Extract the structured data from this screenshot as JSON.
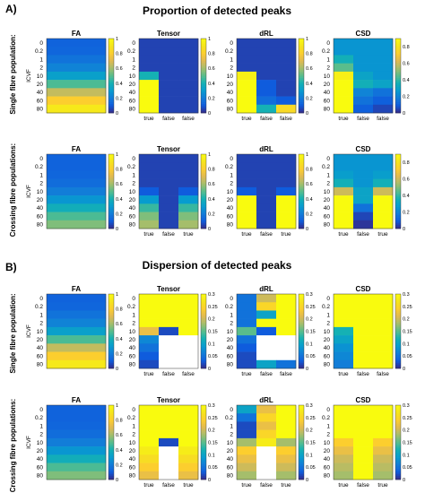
{
  "sections": [
    {
      "letter": "A)",
      "title": "Proportion of detected peaks"
    },
    {
      "letter": "B)",
      "title": "Dispersion of detected peaks"
    }
  ],
  "row_labels": [
    "Single fibre population:",
    "Crossing fibre populations:",
    "Single fibre population:",
    "Crossing fibre populations:"
  ],
  "y_axis_label": "ICVF",
  "y_ticks": [
    "0",
    "0.2",
    "1",
    "2",
    "10",
    "20",
    "40",
    "60",
    "80"
  ],
  "panel_titles": [
    "FA",
    "Tensor",
    "dRL",
    "CSD"
  ],
  "colors": {
    "palette": "parula",
    "nan": "#ffffff"
  },
  "chart_data": [
    {
      "type": "heatmap",
      "section": "A",
      "row": "single",
      "title": "FA",
      "y": [
        "0",
        "0.2",
        "1",
        "2",
        "10",
        "20",
        "40",
        "60",
        "80"
      ],
      "x_labels": [],
      "clim": [
        0,
        1
      ],
      "cbar_ticks": [
        "1",
        "0.8",
        "0.6",
        "0.4",
        "0.2",
        "0"
      ],
      "values": [
        [
          0.12
        ],
        [
          0.13
        ],
        [
          0.17
        ],
        [
          0.22
        ],
        [
          0.32
        ],
        [
          0.48
        ],
        [
          0.65
        ],
        [
          0.8
        ],
        [
          0.92
        ]
      ]
    },
    {
      "type": "heatmap",
      "section": "A",
      "row": "single",
      "title": "Tensor",
      "y": [
        "0",
        "0.2",
        "1",
        "2",
        "10",
        "20",
        "40",
        "60",
        "80"
      ],
      "x_labels": [
        "true",
        "false",
        "false"
      ],
      "clim": [
        0,
        1
      ],
      "cbar_ticks": [
        "1",
        "0.8",
        "0.6",
        "0.4",
        "0.2",
        "0"
      ],
      "values": [
        [
          0.05,
          0.05,
          0.05
        ],
        [
          0.05,
          0.05,
          0.05
        ],
        [
          0.05,
          0.05,
          0.05
        ],
        [
          0.05,
          0.05,
          0.05
        ],
        [
          0.4,
          0.05,
          0.05
        ],
        [
          1,
          0.05,
          0.05
        ],
        [
          1,
          0.05,
          0.05
        ],
        [
          1,
          0.05,
          0.05
        ],
        [
          1,
          0.05,
          0.05
        ]
      ]
    },
    {
      "type": "heatmap",
      "section": "A",
      "row": "single",
      "title": "dRL",
      "y": [
        "0",
        "0.2",
        "1",
        "2",
        "10",
        "20",
        "40",
        "60",
        "80"
      ],
      "x_labels": [
        "true",
        "false",
        "false"
      ],
      "clim": [
        0,
        1
      ],
      "cbar_ticks": [
        "1",
        "0.8",
        "0.6",
        "0.4",
        "0.2",
        "0"
      ],
      "values": [
        [
          0.05,
          0.05,
          0.05
        ],
        [
          0.05,
          0.05,
          0.05
        ],
        [
          0.05,
          0.05,
          0.05
        ],
        [
          0.05,
          0.05,
          0.05
        ],
        [
          0.95,
          0.05,
          0.05
        ],
        [
          1,
          0.1,
          0.05
        ],
        [
          1,
          0.1,
          0.05
        ],
        [
          1,
          0.15,
          0.1
        ],
        [
          1,
          0.4,
          0.85
        ]
      ]
    },
    {
      "type": "heatmap",
      "section": "A",
      "row": "single",
      "title": "CSD",
      "y": [
        "0",
        "0.2",
        "1",
        "2",
        "10",
        "20",
        "40",
        "60",
        "80"
      ],
      "x_labels": [
        "true",
        "false",
        "false"
      ],
      "clim": [
        0,
        0.9
      ],
      "cbar_ticks": [
        "0.8",
        "0.6",
        "0.4",
        "0.2",
        "0"
      ],
      "values": [
        [
          0.25,
          0.25,
          0.25
        ],
        [
          0.25,
          0.25,
          0.25
        ],
        [
          0.35,
          0.25,
          0.25
        ],
        [
          0.45,
          0.25,
          0.25
        ],
        [
          0.85,
          0.3,
          0.25
        ],
        [
          0.9,
          0.35,
          0.3
        ],
        [
          0.9,
          0.2,
          0.15
        ],
        [
          0.9,
          0.15,
          0.1
        ],
        [
          0.9,
          0.1,
          0.05
        ]
      ]
    },
    {
      "type": "heatmap",
      "section": "A",
      "row": "crossing",
      "title": "FA",
      "y": [
        "0",
        "0.2",
        "1",
        "2",
        "10",
        "20",
        "40",
        "60",
        "80"
      ],
      "x_labels": [],
      "clim": [
        0,
        1
      ],
      "cbar_ticks": [
        "1",
        "0.8",
        "0.6",
        "0.4",
        "0.2",
        "0"
      ],
      "values": [
        [
          0.12
        ],
        [
          0.12
        ],
        [
          0.13
        ],
        [
          0.15
        ],
        [
          0.2
        ],
        [
          0.28
        ],
        [
          0.38
        ],
        [
          0.48
        ],
        [
          0.55
        ]
      ]
    },
    {
      "type": "heatmap",
      "section": "A",
      "row": "crossing",
      "title": "Tensor",
      "y": [
        "0",
        "0.2",
        "1",
        "2",
        "10",
        "20",
        "40",
        "60",
        "80"
      ],
      "x_labels": [
        "true",
        "false",
        "true"
      ],
      "clim": [
        0,
        1
      ],
      "cbar_ticks": [
        "1",
        "0.8",
        "0.6",
        "0.4",
        "0.2",
        "0"
      ],
      "values": [
        [
          0.05,
          0.05,
          0.05
        ],
        [
          0.05,
          0.05,
          0.05
        ],
        [
          0.05,
          0.05,
          0.05
        ],
        [
          0.05,
          0.05,
          0.05
        ],
        [
          0.1,
          0.05,
          0.1
        ],
        [
          0.3,
          0.05,
          0.3
        ],
        [
          0.45,
          0.05,
          0.45
        ],
        [
          0.55,
          0.05,
          0.55
        ],
        [
          0.6,
          0.05,
          0.6
        ]
      ]
    },
    {
      "type": "heatmap",
      "section": "A",
      "row": "crossing",
      "title": "dRL",
      "y": [
        "0",
        "0.2",
        "1",
        "2",
        "10",
        "20",
        "40",
        "60",
        "80"
      ],
      "x_labels": [
        "true",
        "false",
        "true"
      ],
      "clim": [
        0,
        1
      ],
      "cbar_ticks": [
        "1",
        "0.8",
        "0.6",
        "0.4",
        "0.2",
        "0"
      ],
      "values": [
        [
          0.05,
          0.05,
          0.05
        ],
        [
          0.05,
          0.05,
          0.05
        ],
        [
          0.05,
          0.05,
          0.05
        ],
        [
          0.05,
          0.05,
          0.05
        ],
        [
          0.1,
          0.05,
          0.1
        ],
        [
          1,
          0.05,
          1
        ],
        [
          1,
          0.05,
          1
        ],
        [
          1,
          0.05,
          1
        ],
        [
          1,
          0.05,
          1
        ]
      ]
    },
    {
      "type": "heatmap",
      "section": "A",
      "row": "crossing",
      "title": "CSD",
      "y": [
        "0",
        "0.2",
        "1",
        "2",
        "10",
        "20",
        "40",
        "60",
        "80"
      ],
      "x_labels": [
        "true",
        "false",
        "true"
      ],
      "clim": [
        0,
        0.9
      ],
      "cbar_ticks": [
        "0.8",
        "0.6",
        "0.4",
        "0.2",
        "0"
      ],
      "values": [
        [
          0.25,
          0.25,
          0.25
        ],
        [
          0.25,
          0.25,
          0.25
        ],
        [
          0.28,
          0.25,
          0.28
        ],
        [
          0.35,
          0.25,
          0.35
        ],
        [
          0.6,
          0.3,
          0.6
        ],
        [
          0.9,
          0.3,
          0.9
        ],
        [
          0.9,
          0.15,
          0.9
        ],
        [
          0.9,
          0.05,
          0.9
        ],
        [
          0.9,
          0.02,
          0.9
        ]
      ]
    },
    {
      "type": "heatmap",
      "section": "B",
      "row": "single",
      "title": "FA",
      "y": [
        "0",
        "0.2",
        "1",
        "2",
        "10",
        "20",
        "40",
        "60",
        "80"
      ],
      "x_labels": [],
      "clim": [
        0,
        1
      ],
      "cbar_ticks": [
        "1",
        "0.8",
        "0.6",
        "0.4",
        "0.2",
        "0"
      ],
      "values": [
        [
          0.12
        ],
        [
          0.13
        ],
        [
          0.17
        ],
        [
          0.22
        ],
        [
          0.32
        ],
        [
          0.48
        ],
        [
          0.65
        ],
        [
          0.8
        ],
        [
          0.92
        ]
      ]
    },
    {
      "type": "heatmap",
      "section": "B",
      "row": "single",
      "title": "Tensor",
      "y": [
        "0",
        "0.2",
        "1",
        "2",
        "10",
        "20",
        "40",
        "60",
        "80"
      ],
      "x_labels": [
        "true",
        "false",
        "false"
      ],
      "clim": [
        0,
        0.3
      ],
      "cbar_ticks": [
        "0.3",
        "0.25",
        "0.2",
        "0.15",
        "0.1",
        "0.05",
        "0"
      ],
      "values": [
        [
          0.3,
          0.3,
          0.3
        ],
        [
          0.3,
          0.3,
          0.3
        ],
        [
          0.3,
          0.3,
          0.3
        ],
        [
          0.3,
          0.3,
          0.3
        ],
        [
          0.22,
          0.02,
          0.3
        ],
        [
          0.07,
          null,
          null
        ],
        [
          0.05,
          null,
          null
        ],
        [
          0.03,
          null,
          null
        ],
        [
          0.02,
          null,
          null
        ]
      ]
    },
    {
      "type": "heatmap",
      "section": "B",
      "row": "single",
      "title": "dRL",
      "y": [
        "0",
        "0.2",
        "1",
        "2",
        "10",
        "20",
        "40",
        "60",
        "80"
      ],
      "x_labels": [
        "true",
        "false",
        "false"
      ],
      "clim": [
        0,
        0.3
      ],
      "cbar_ticks": [
        "0.3",
        "0.25",
        "0.2",
        "0.15",
        "0.1",
        "0.05",
        "0"
      ],
      "values": [
        [
          0.05,
          0.2,
          0.3
        ],
        [
          0.05,
          0.25,
          0.3
        ],
        [
          0.05,
          0.1,
          0.3
        ],
        [
          0.05,
          0.3,
          0.3
        ],
        [
          0.15,
          0.03,
          0.3
        ],
        [
          0.05,
          null,
          null
        ],
        [
          0.03,
          null,
          null
        ],
        [
          0.02,
          null,
          null
        ],
        [
          0.02,
          0.1,
          0.05
        ]
      ]
    },
    {
      "type": "heatmap",
      "section": "B",
      "row": "single",
      "title": "CSD",
      "y": [
        "0",
        "0.2",
        "1",
        "2",
        "10",
        "20",
        "40",
        "60",
        "80"
      ],
      "x_labels": [
        "true",
        "false",
        "false"
      ],
      "clim": [
        0,
        0.3
      ],
      "cbar_ticks": [
        "0.3",
        "0.25",
        "0.2",
        "0.15",
        "0.1",
        "0.05",
        "0"
      ],
      "values": [
        [
          0.3,
          0.3,
          0.3
        ],
        [
          0.3,
          0.3,
          0.3
        ],
        [
          0.3,
          0.3,
          0.3
        ],
        [
          0.3,
          0.3,
          0.3
        ],
        [
          0.12,
          0.3,
          0.3
        ],
        [
          0.1,
          0.3,
          0.3
        ],
        [
          0.08,
          0.3,
          0.3
        ],
        [
          0.07,
          0.3,
          0.3
        ],
        [
          0.06,
          0.3,
          0.3
        ]
      ]
    },
    {
      "type": "heatmap",
      "section": "B",
      "row": "crossing",
      "title": "FA",
      "y": [
        "0",
        "0.2",
        "1",
        "2",
        "10",
        "20",
        "40",
        "60",
        "80"
      ],
      "x_labels": [],
      "clim": [
        0,
        1
      ],
      "cbar_ticks": [
        "1",
        "0.8",
        "0.6",
        "0.4",
        "0.2",
        "0"
      ],
      "values": [
        [
          0.12
        ],
        [
          0.12
        ],
        [
          0.13
        ],
        [
          0.15
        ],
        [
          0.2
        ],
        [
          0.28
        ],
        [
          0.38
        ],
        [
          0.48
        ],
        [
          0.55
        ]
      ]
    },
    {
      "type": "heatmap",
      "section": "B",
      "row": "crossing",
      "title": "Tensor",
      "y": [
        "0",
        "0.2",
        "1",
        "2",
        "10",
        "20",
        "40",
        "60",
        "80"
      ],
      "x_labels": [
        "true",
        "false",
        "true"
      ],
      "clim": [
        0,
        0.3
      ],
      "cbar_ticks": [
        "0.3",
        "0.25",
        "0.2",
        "0.15",
        "0.1",
        "0.05",
        "0"
      ],
      "values": [
        [
          0.3,
          0.3,
          0.3
        ],
        [
          0.3,
          0.3,
          0.3
        ],
        [
          0.3,
          0.3,
          0.3
        ],
        [
          0.3,
          0.3,
          0.3
        ],
        [
          0.3,
          0.02,
          0.3
        ],
        [
          0.28,
          null,
          0.28
        ],
        [
          0.26,
          null,
          0.26
        ],
        [
          0.24,
          null,
          0.24
        ],
        [
          0.22,
          null,
          0.22
        ]
      ]
    },
    {
      "type": "heatmap",
      "section": "B",
      "row": "crossing",
      "title": "dRL",
      "y": [
        "0",
        "0.2",
        "1",
        "2",
        "10",
        "20",
        "40",
        "60",
        "80"
      ],
      "x_labels": [
        "true",
        "false",
        "true"
      ],
      "clim": [
        0,
        0.3
      ],
      "cbar_ticks": [
        "0.3",
        "0.25",
        "0.2",
        "0.15",
        "0.1",
        "0.05",
        "0"
      ],
      "values": [
        [
          0.1,
          0.22,
          0.3
        ],
        [
          0.05,
          0.25,
          0.3
        ],
        [
          0.02,
          0.22,
          0.3
        ],
        [
          0.02,
          0.25,
          0.3
        ],
        [
          0.18,
          0.28,
          0.18
        ],
        [
          0.24,
          null,
          0.24
        ],
        [
          0.22,
          null,
          0.22
        ],
        [
          0.2,
          null,
          0.2
        ],
        [
          0.18,
          null,
          0.18
        ]
      ]
    },
    {
      "type": "heatmap",
      "section": "B",
      "row": "crossing",
      "title": "CSD",
      "y": [
        "0",
        "0.2",
        "1",
        "2",
        "10",
        "20",
        "40",
        "60",
        "80"
      ],
      "x_labels": [
        "true",
        "false",
        "true"
      ],
      "clim": [
        0,
        0.3
      ],
      "cbar_ticks": [
        "0.3",
        "0.25",
        "0.2",
        "0.15",
        "0.1",
        "0.05",
        "0"
      ],
      "values": [
        [
          0.3,
          0.3,
          0.3
        ],
        [
          0.3,
          0.3,
          0.3
        ],
        [
          0.3,
          0.3,
          0.3
        ],
        [
          0.3,
          0.3,
          0.3
        ],
        [
          0.24,
          0.3,
          0.24
        ],
        [
          0.22,
          0.3,
          0.22
        ],
        [
          0.2,
          0.3,
          0.2
        ],
        [
          0.19,
          0.3,
          0.19
        ],
        [
          0.18,
          0.3,
          0.18
        ]
      ]
    }
  ]
}
